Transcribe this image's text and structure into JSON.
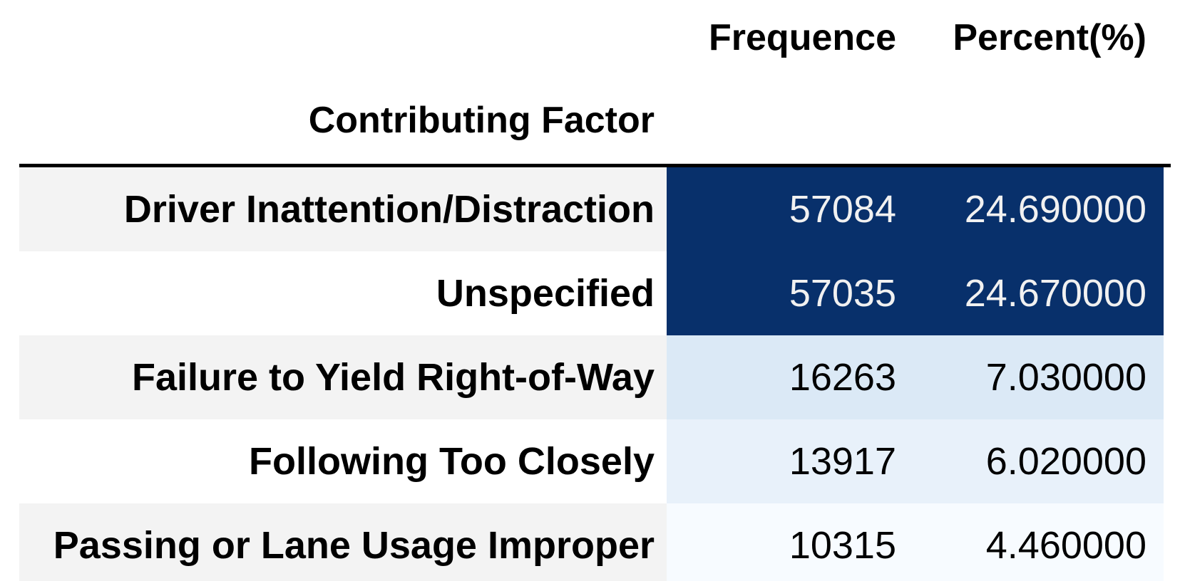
{
  "chart_data": {
    "type": "table",
    "index_name": "Contributing Factor",
    "columns": [
      "Frequence",
      "Percent(%)"
    ],
    "rows": [
      {
        "label": "Driver Inattention/Distraction",
        "frequence": "57084",
        "percent": "24.690000",
        "freq_value": 57084,
        "percent_value": 24.69
      },
      {
        "label": "Unspecified",
        "frequence": "57035",
        "percent": "24.670000",
        "freq_value": 57035,
        "percent_value": 24.67
      },
      {
        "label": "Failure to Yield Right-of-Way",
        "frequence": "16263",
        "percent": "7.030000",
        "freq_value": 16263,
        "percent_value": 7.03
      },
      {
        "label": "Following Too Closely",
        "frequence": "13917",
        "percent": "6.020000",
        "freq_value": 13917,
        "percent_value": 6.02
      },
      {
        "label": "Passing or Lane Usage Improper",
        "frequence": "10315",
        "percent": "4.460000",
        "freq_value": 10315,
        "percent_value": 4.46
      }
    ]
  },
  "colors": {
    "stripe_label_background": "#f3f3f3",
    "header_rule": "#000000",
    "cell_backgrounds": [
      "#08306b",
      "#08306b",
      "#dbe9f6",
      "#e8f1fa",
      "#f7fbff"
    ],
    "cell_text": [
      "#f1f1f1",
      "#f1f1f1",
      "#000000",
      "#000000",
      "#000000"
    ]
  }
}
